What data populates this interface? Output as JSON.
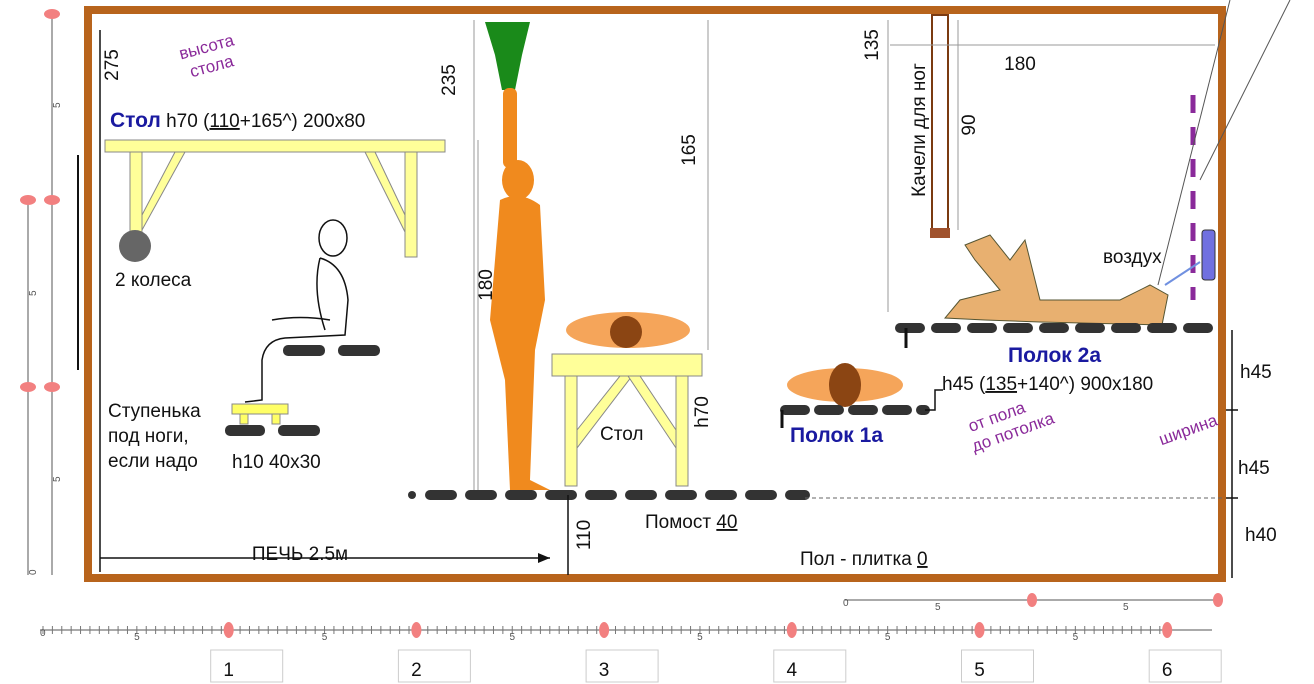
{
  "labels": {
    "h275": "275",
    "table_note": [
      "высота",
      "стола"
    ],
    "table_title": "Стол",
    "table_spec_a": " h70 (",
    "table_spec_u": "110",
    "table_spec_b": "+165^) 200x80",
    "wheels": "2 колеса",
    "step": [
      "Ступенька",
      "под ноги,",
      "если надо"
    ],
    "step_size": "h10 40x30",
    "h235": "235",
    "h180": "180",
    "h165": "165",
    "table2": "Стол",
    "table2_h": "h70",
    "h110": "110",
    "platform": "Помост ",
    "platform_u": "40",
    "stove": "ПЕЧЬ 2.5м",
    "floor": "Пол - плитка ",
    "floor_u": "0",
    "shelf1": "Полок 1а",
    "shelf2": "Полок 2а",
    "shelf2_spec_a": "h45 (",
    "shelf2_spec_u": "135",
    "shelf2_spec_b": "+140^) 900x180",
    "from_floor": "от пола",
    "to_ceiling": "до потолка",
    "width_note": "ширина",
    "air": "воздух",
    "swing": "Качели для ног",
    "h90": "90",
    "h135": "135",
    "w180": "180",
    "levels": [
      "h45",
      "h45",
      "h40"
    ]
  },
  "bottom_ruler": {
    "labels": [
      "1",
      "2",
      "3",
      "4",
      "5",
      "6"
    ],
    "minor": [
      "5",
      "5",
      "5",
      "5",
      "5",
      "5"
    ],
    "start": "0"
  },
  "left_ruler": {
    "minor": [
      "5",
      "5",
      "5"
    ],
    "start": "0"
  },
  "right_ruler": {
    "start": "0",
    "minor": [
      "5",
      "5"
    ]
  }
}
